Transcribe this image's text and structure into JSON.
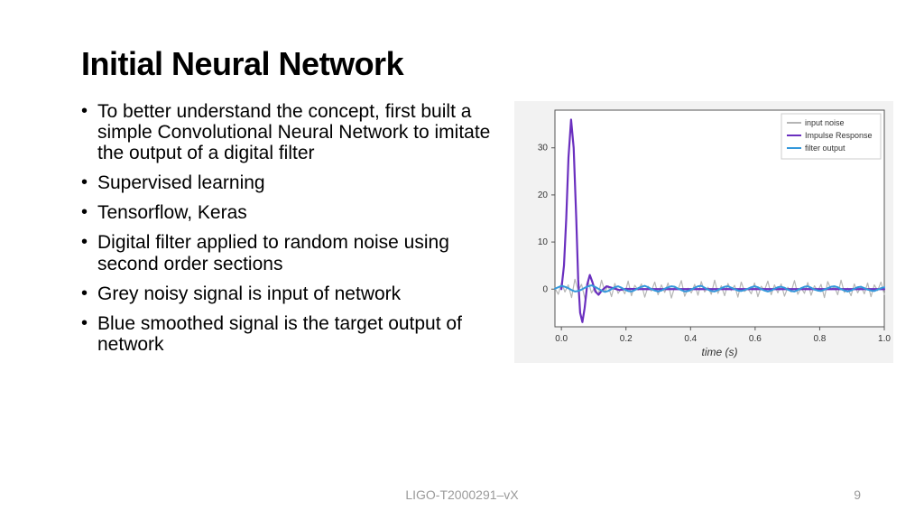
{
  "title": "Initial Neural Network",
  "bullets": [
    "To better understand the concept, first built a simple Convolutional Neural Network to imitate the output of a digital filter",
    "Supervised learning",
    "Tensorflow, Keras",
    "Digital filter applied to random noise using second order sections",
    "Grey noisy signal is input of network",
    "Blue smoothed signal is the target output of network"
  ],
  "footer": {
    "doc": "LIGO-T2000291–vX",
    "page": "9"
  },
  "chart": {
    "type": "line",
    "background_color": "#ffffff",
    "plot_border_color": "#555555",
    "outer_pad_color": "#f2f2f2",
    "xlabel": "time (s)",
    "label_fontsize": 12,
    "label_color": "#333333",
    "tick_fontsize": 10,
    "tick_color": "#333333",
    "xlim": [
      -0.02,
      1.0
    ],
    "ylim": [
      -8,
      38
    ],
    "xticks": [
      0.0,
      0.2,
      0.4,
      0.6,
      0.8,
      1.0
    ],
    "yticks": [
      0,
      10,
      20,
      30
    ],
    "legend": {
      "position": "upper-right",
      "border_color": "#cccccc",
      "bg_color": "#ffffff",
      "fontsize": 9,
      "items": [
        {
          "label": "input noise",
          "color": "#b5b5b5"
        },
        {
          "label": "Impulse Response",
          "color": "#6a2fbf"
        },
        {
          "label": "filter output",
          "color": "#3498db"
        }
      ]
    },
    "series": {
      "input_noise": {
        "color": "#b5b5b5",
        "width": 1.2,
        "y": [
          0.2,
          -1.1,
          1.4,
          -0.6,
          0.9,
          -1.8,
          2.1,
          -0.3,
          1.0,
          -2.0,
          1.6,
          -0.8,
          0.4,
          -1.3,
          1.9,
          -0.5,
          0.7,
          -1.6,
          1.2,
          -0.9,
          0.3,
          -1.0,
          1.7,
          -1.4,
          0.8,
          -0.2,
          1.1,
          -1.7,
          0.6,
          -0.4,
          1.5,
          -1.2,
          0.9,
          -0.7,
          1.3,
          -1.9,
          0.5,
          -0.1,
          1.8,
          -1.5,
          0.2,
          -0.8,
          1.0,
          -1.3,
          1.6,
          -0.6,
          0.4,
          -1.1,
          1.9,
          -0.9,
          0.7,
          -1.4,
          1.2,
          -0.3,
          0.8,
          -1.7,
          1.5,
          -0.5,
          0.1,
          -1.0,
          1.3,
          -1.6,
          0.6,
          -0.2,
          1.7,
          -1.2,
          0.9,
          -0.8,
          1.1,
          -1.5,
          0.4,
          -0.6,
          1.8,
          -1.1,
          0.3,
          -0.9,
          1.4,
          -1.3,
          0.7,
          -0.4,
          1.0,
          -1.8,
          1.6,
          -0.1,
          0.5,
          -1.2,
          1.9,
          -0.7,
          0.2,
          -1.4,
          1.1,
          -0.8,
          0.6,
          -1.0,
          1.3,
          -1.6,
          0.9,
          -0.3,
          1.5,
          -1.1
        ]
      },
      "impulse_response": {
        "color": "#6a2fbf",
        "width": 2.2,
        "xy": [
          [
            0.0,
            0.0
          ],
          [
            0.008,
            5
          ],
          [
            0.015,
            15
          ],
          [
            0.022,
            28
          ],
          [
            0.03,
            36
          ],
          [
            0.038,
            30
          ],
          [
            0.046,
            15
          ],
          [
            0.052,
            2
          ],
          [
            0.058,
            -5
          ],
          [
            0.065,
            -7
          ],
          [
            0.072,
            -4
          ],
          [
            0.08,
            1
          ],
          [
            0.088,
            3
          ],
          [
            0.096,
            1.5
          ],
          [
            0.105,
            -0.5
          ],
          [
            0.115,
            -1.2
          ],
          [
            0.125,
            -0.3
          ],
          [
            0.14,
            0.6
          ],
          [
            0.16,
            0.2
          ],
          [
            0.18,
            -0.2
          ],
          [
            0.2,
            0.05
          ],
          [
            0.25,
            0
          ],
          [
            0.3,
            0
          ],
          [
            1.0,
            0
          ]
        ]
      },
      "filter_output": {
        "color": "#3498db",
        "width": 2.0,
        "y": [
          0.1,
          0.4,
          0.7,
          0.5,
          0.2,
          -0.2,
          -0.5,
          -0.4,
          -0.1,
          0.3,
          0.6,
          0.8,
          0.5,
          0.1,
          -0.3,
          -0.6,
          -0.4,
          0.0,
          0.4,
          0.6,
          0.3,
          -0.1,
          -0.4,
          -0.5,
          -0.2,
          0.2,
          0.5,
          0.7,
          0.4,
          0.0,
          -0.3,
          -0.5,
          -0.3,
          0.1,
          0.4,
          0.6,
          0.5,
          0.1,
          -0.2,
          -0.5,
          -0.4,
          -0.1,
          0.3,
          0.6,
          0.7,
          0.3,
          -0.1,
          -0.4,
          -0.5,
          -0.2,
          0.2,
          0.5,
          0.6,
          0.3,
          0.0,
          -0.3,
          -0.4,
          -0.2,
          0.1,
          0.4,
          0.6,
          0.4,
          0.0,
          -0.3,
          -0.5,
          -0.3,
          0.1,
          0.4,
          0.5,
          0.3,
          -0.1,
          -0.4,
          -0.5,
          -0.2,
          0.2,
          0.5,
          0.6,
          0.3,
          -0.1,
          -0.3,
          -0.4,
          -0.1,
          0.2,
          0.5,
          0.6,
          0.4,
          0.0,
          -0.3,
          -0.5,
          -0.3,
          0.1,
          0.4,
          0.5,
          0.2,
          -0.1,
          -0.3,
          -0.4,
          -0.1,
          0.2,
          0.4
        ]
      }
    }
  }
}
